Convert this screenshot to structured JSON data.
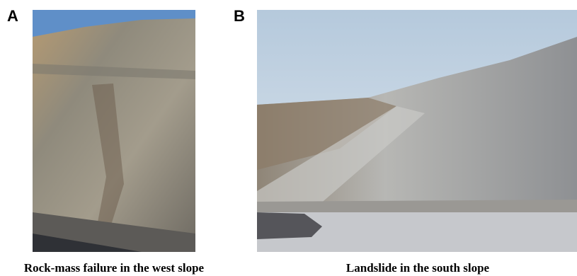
{
  "panels": [
    {
      "label": "A",
      "caption": "Rock-mass failure in the west slope"
    },
    {
      "label": "B",
      "caption": "Landslide in the south slope"
    }
  ]
}
